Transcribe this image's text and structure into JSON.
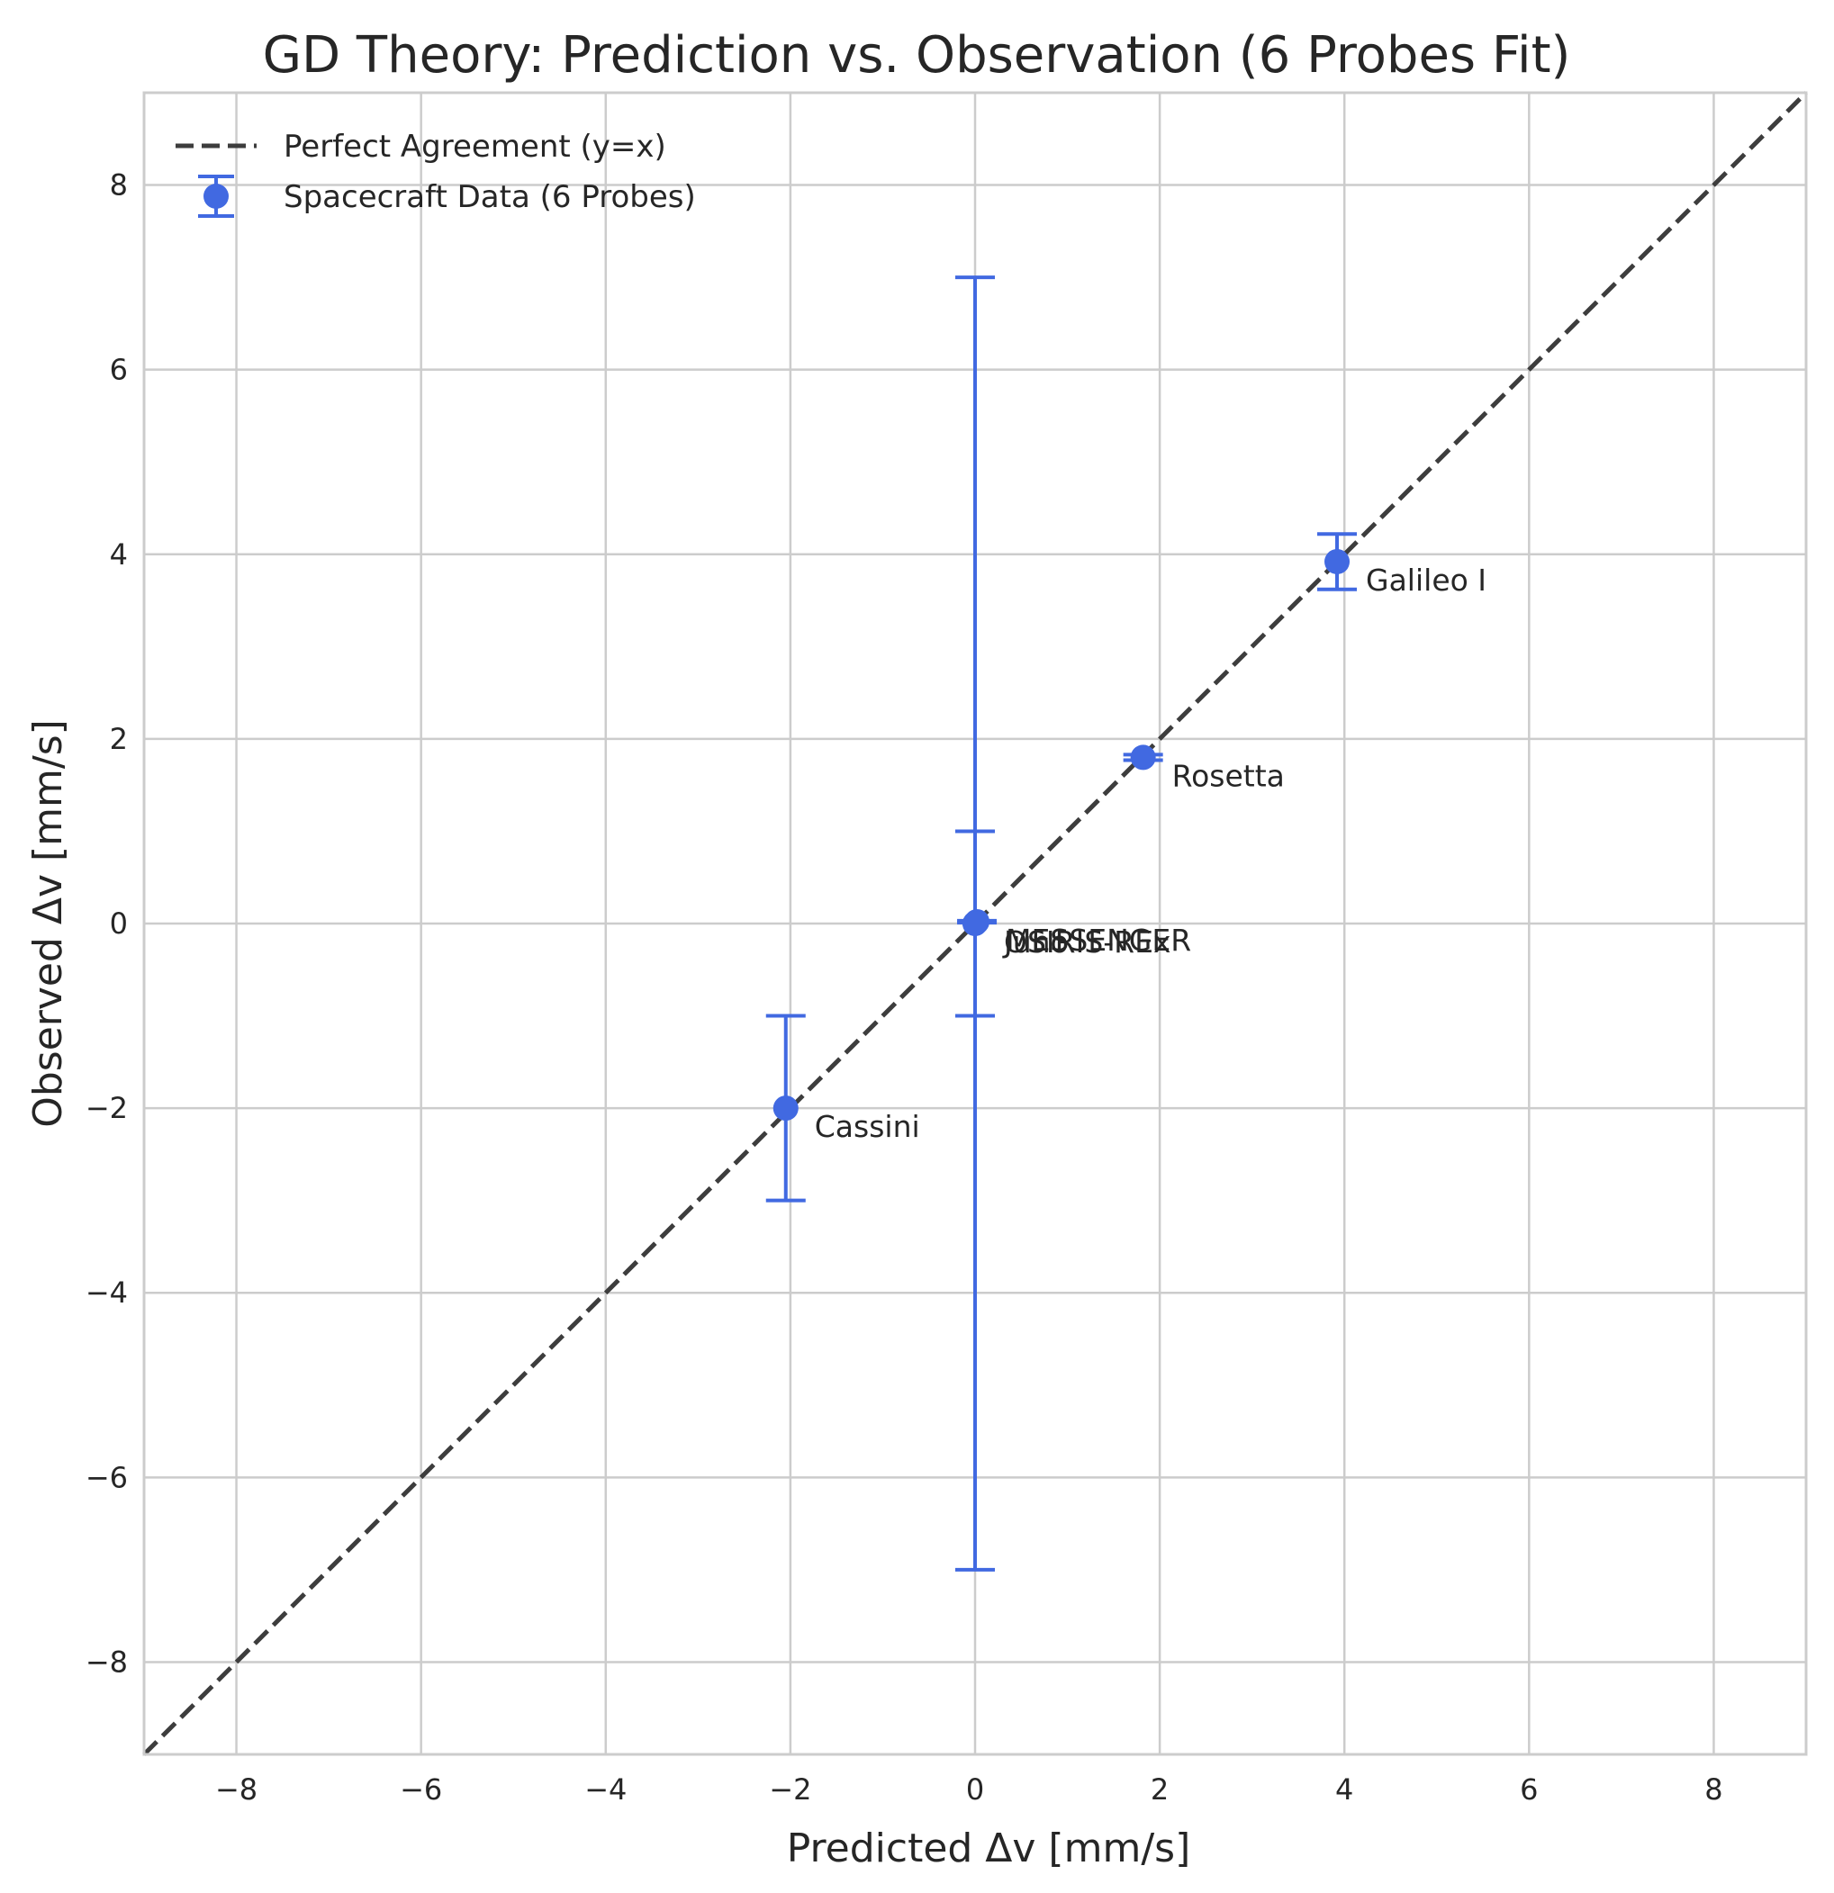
{
  "chart_data": {
    "type": "scatter",
    "title": "GD Theory: Prediction vs. Observation (6 Probes Fit)",
    "xlabel": "Predicted Δv [mm/s]",
    "ylabel": "Observed Δv [mm/s]",
    "xlim": [
      -9,
      9
    ],
    "ylim": [
      -9,
      9
    ],
    "xticks": [
      -8,
      -6,
      -4,
      -2,
      0,
      2,
      4,
      6,
      8
    ],
    "yticks": [
      -8,
      -6,
      -4,
      -2,
      0,
      2,
      4,
      6,
      8
    ],
    "xtick_labels": [
      "−8",
      "−6",
      "−4",
      "−2",
      "0",
      "2",
      "4",
      "6",
      "8"
    ],
    "ytick_labels": [
      "−8",
      "−6",
      "−4",
      "−2",
      "0",
      "2",
      "4",
      "6",
      "8"
    ],
    "grid": true,
    "legend": {
      "placement": "top-left",
      "entries": [
        {
          "label": "Perfect Agreement (y=x)",
          "style": "dashed-line",
          "color": "#3d3d3d"
        },
        {
          "label": "Spacecraft Data (6 Probes)",
          "style": "errorbar-marker",
          "color": "#4169e1"
        }
      ]
    },
    "reference_line": {
      "name": "Perfect Agreement (y=x)",
      "from": [
        -9,
        -9
      ],
      "to": [
        9,
        9
      ],
      "color": "#3d3d3d"
    },
    "series": [
      {
        "name": "Spacecraft Data (6 Probes)",
        "color": "#4169e1",
        "points": [
          {
            "label": "Galileo I",
            "x": 3.92,
            "y": 3.92,
            "yerr": 0.3
          },
          {
            "label": "Rosetta",
            "x": 1.82,
            "y": 1.8,
            "yerr": 0.03
          },
          {
            "label": "MESSENGER",
            "x": 0.02,
            "y": 0.02,
            "yerr": 0.01
          },
          {
            "label": "OSIRIS-REx",
            "x": 0.0,
            "y": 0.0,
            "yerr": 1.0
          },
          {
            "label": "Juno",
            "x": 0.0,
            "y": 0.0,
            "yerr": 7.0
          },
          {
            "label": "Cassini",
            "x": -2.05,
            "y": -2.0,
            "yerr": 1.0
          }
        ]
      }
    ]
  }
}
